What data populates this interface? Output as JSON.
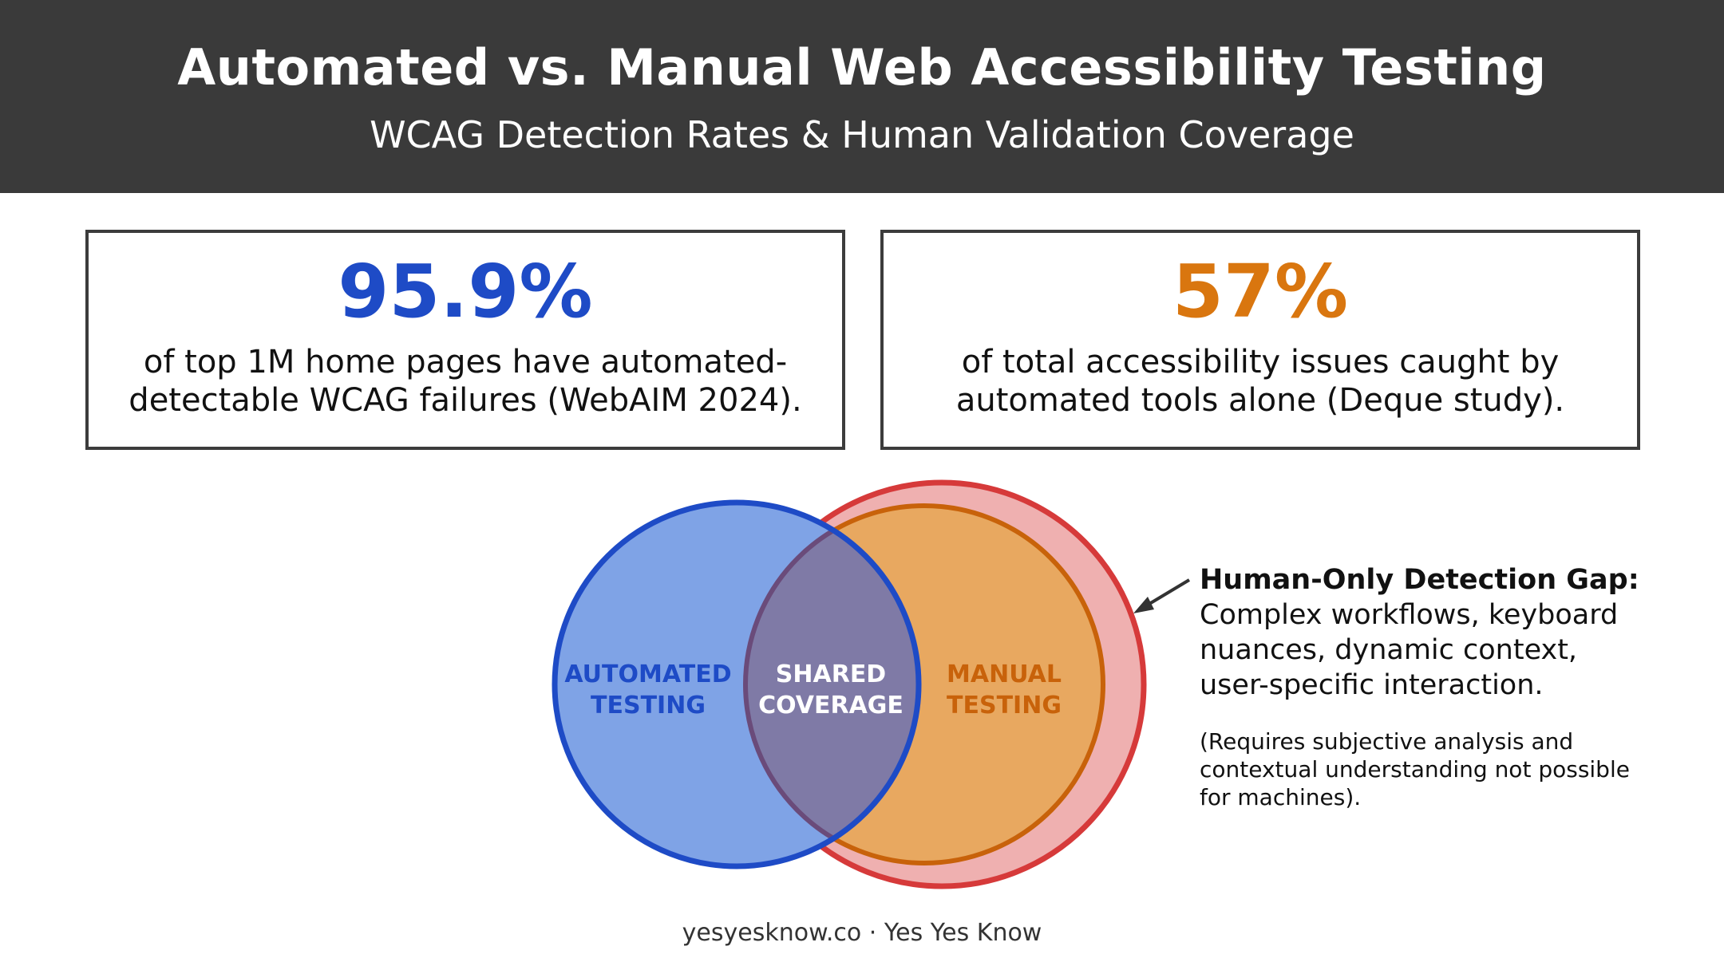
{
  "header": {
    "title": "Automated vs. Manual Web Accessibility Testing",
    "subtitle": "WCAG Detection Rates & Human Validation Coverage"
  },
  "stats": [
    {
      "value": "95.9%",
      "line1": "of top 1M home pages have automated-",
      "line2": "detectable WCAG failures (WebAIM 2024).",
      "color": "#1e4bc6"
    },
    {
      "value": "57%",
      "line1": "of total accessibility issues caught by",
      "line2": "automated tools alone (Deque study).",
      "color": "#d9760f"
    }
  ],
  "venn": {
    "automated": {
      "line1": "AUTOMATED",
      "line2": "TESTING",
      "color": "#1e4bc6",
      "fill": "#7fa3e6"
    },
    "shared": {
      "line1": "SHARED",
      "line2": "COVERAGE",
      "color": "#ffffff",
      "fill": "#7f7aa6"
    },
    "manual": {
      "line1": "MANUAL",
      "line2": "TESTING",
      "color": "#c8620a",
      "fill": "#e8a860"
    },
    "outer_ring_color": "#d63a3a",
    "outer_fill": "#efb0b0"
  },
  "gap": {
    "title": "Human-Only Detection Gap:",
    "body_lines": [
      "Complex workflows, keyboard",
      "nuances, dynamic context,",
      "user-specific interaction."
    ],
    "note_lines": [
      "(Requires subjective analysis and",
      "contextual understanding not possible",
      "for machines)."
    ]
  },
  "footer": "yesyesknow.co · Yes Yes Know"
}
